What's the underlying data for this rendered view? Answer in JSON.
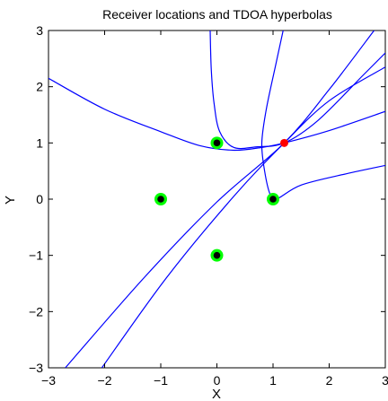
{
  "chart_data": {
    "type": "line",
    "title": "Receiver locations and TDOA hyperbolas",
    "xlabel": "X",
    "ylabel": "Y",
    "xlim": [
      -3,
      3
    ],
    "ylim": [
      -3,
      3
    ],
    "xticks": [
      -3,
      -2,
      -1,
      0,
      1,
      2,
      3
    ],
    "yticks": [
      -3,
      -2,
      -1,
      0,
      1,
      2,
      3
    ],
    "grid": false,
    "receivers": [
      {
        "x": 0,
        "y": 1
      },
      {
        "x": -1,
        "y": 0
      },
      {
        "x": 1,
        "y": 0
      },
      {
        "x": 0,
        "y": -1
      }
    ],
    "emitter": {
      "x": 1.2,
      "y": 1.0
    },
    "colors": {
      "curve": "#0000ff",
      "receiver_ring": "#00ff00",
      "receiver_center": "#000000",
      "emitter": "#ff0000"
    },
    "series": [
      {
        "values": [
          [
            -3,
            2.15
          ],
          [
            -2,
            1.6
          ],
          [
            -1,
            1.2
          ],
          [
            -0.3,
            0.95
          ],
          [
            0.3,
            0.87
          ],
          [
            0.8,
            0.92
          ],
          [
            1.2,
            1.0
          ],
          [
            2.0,
            1.22
          ],
          [
            3.0,
            1.56
          ]
        ]
      },
      {
        "values": [
          [
            -0.12,
            3.0
          ],
          [
            -0.1,
            2.3
          ],
          [
            -0.05,
            1.7
          ],
          [
            0.05,
            1.2
          ],
          [
            0.3,
            0.92
          ],
          [
            0.7,
            0.93
          ],
          [
            1.2,
            1.0
          ],
          [
            1.8,
            1.4
          ],
          [
            2.6,
            2.2
          ],
          [
            3.0,
            2.6
          ]
        ]
      },
      {
        "values": [
          [
            1.18,
            3.0
          ],
          [
            1.05,
            2.4
          ],
          [
            0.88,
            1.6
          ],
          [
            0.8,
            1.0
          ],
          [
            0.85,
            0.5
          ],
          [
            0.95,
            0.08
          ],
          [
            1.06,
            0.0
          ],
          [
            1.5,
            0.25
          ],
          [
            2.3,
            0.45
          ],
          [
            3.0,
            0.6
          ]
        ]
      },
      {
        "values": [
          [
            -2.7,
            -3.0
          ],
          [
            -1.3,
            -1.4
          ],
          [
            0.0,
            -0.05
          ],
          [
            1.2,
            1.0
          ],
          [
            2.0,
            1.95
          ],
          [
            2.8,
            3.0
          ]
        ]
      },
      {
        "values": [
          [
            -2.05,
            -3.0
          ],
          [
            -0.9,
            -1.4
          ],
          [
            0.3,
            0.05
          ],
          [
            1.2,
            1.0
          ],
          [
            2.0,
            1.75
          ],
          [
            3.0,
            2.35
          ]
        ]
      }
    ]
  }
}
